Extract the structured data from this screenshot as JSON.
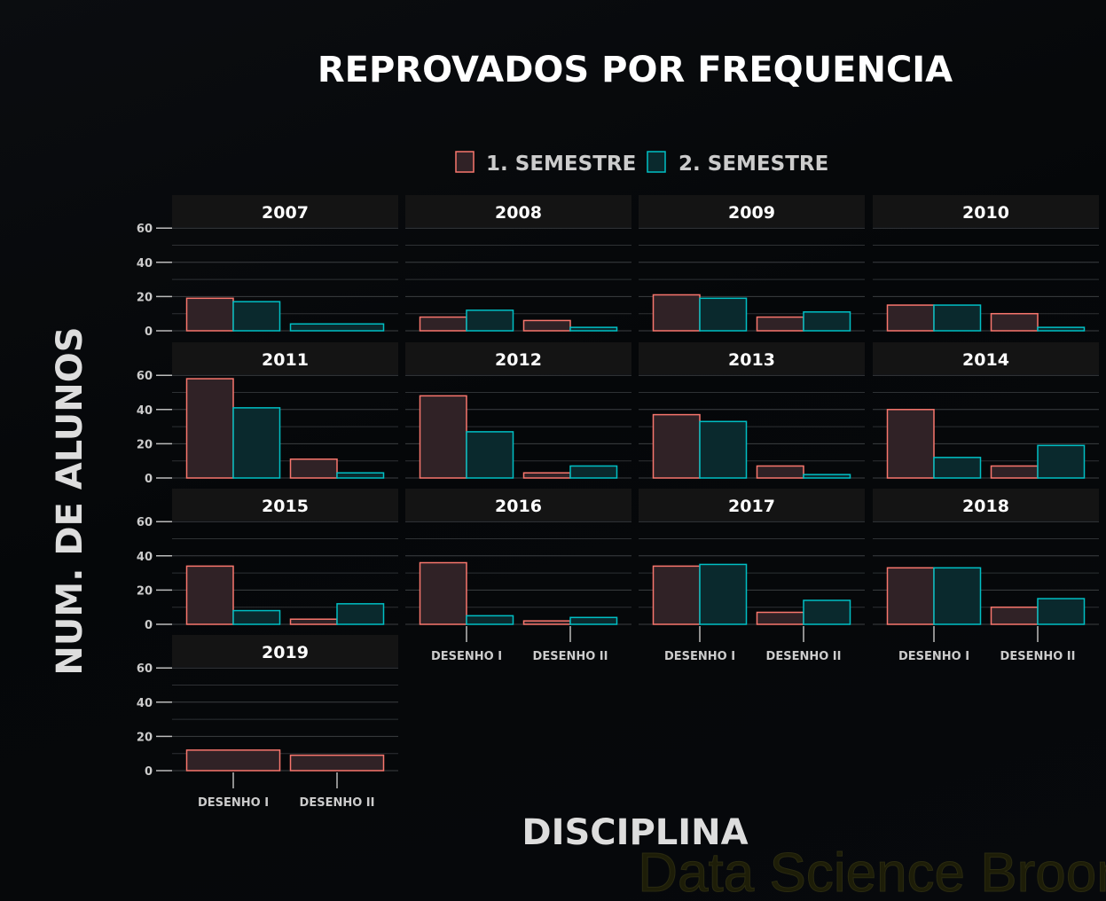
{
  "chart_data": {
    "type": "bar",
    "title": "REPROVADOS POR FREQUENCIA",
    "xlabel": "DISCIPLINA",
    "ylabel": "NUM. DE ALUNOS",
    "ylim": [
      0,
      70
    ],
    "yticks": [
      0,
      20,
      40,
      60
    ],
    "categories": [
      "DESENHO I",
      "DESENHO II"
    ],
    "legend": {
      "placement": "top",
      "entries": [
        "1. SEMESTRE",
        "2. SEMESTRE"
      ]
    },
    "colors": {
      "1. SEMESTRE": {
        "stroke": "#f8766d",
        "fill": "#302226"
      },
      "2. SEMESTRE": {
        "stroke": "#00bfc4",
        "fill": "#0a292d"
      }
    },
    "grid": true,
    "facets": [
      {
        "year": "2007",
        "data": {
          "DESENHO I": {
            "1. SEMESTRE": 19,
            "2. SEMESTRE": 17
          },
          "DESENHO II": {
            "2. SEMESTRE": 4
          }
        }
      },
      {
        "year": "2008",
        "data": {
          "DESENHO I": {
            "1. SEMESTRE": 8,
            "2. SEMESTRE": 12
          },
          "DESENHO II": {
            "1. SEMESTRE": 6,
            "2. SEMESTRE": 2
          }
        }
      },
      {
        "year": "2009",
        "data": {
          "DESENHO I": {
            "1. SEMESTRE": 21,
            "2. SEMESTRE": 19
          },
          "DESENHO II": {
            "1. SEMESTRE": 8,
            "2. SEMESTRE": 11
          }
        }
      },
      {
        "year": "2010",
        "data": {
          "DESENHO I": {
            "1. SEMESTRE": 15,
            "2. SEMESTRE": 15
          },
          "DESENHO II": {
            "1. SEMESTRE": 10,
            "2. SEMESTRE": 2
          }
        }
      },
      {
        "year": "2011",
        "data": {
          "DESENHO I": {
            "1. SEMESTRE": 58,
            "2. SEMESTRE": 41
          },
          "DESENHO II": {
            "1. SEMESTRE": 11,
            "2. SEMESTRE": 3
          }
        }
      },
      {
        "year": "2012",
        "data": {
          "DESENHO I": {
            "1. SEMESTRE": 48,
            "2. SEMESTRE": 27
          },
          "DESENHO II": {
            "1. SEMESTRE": 3,
            "2. SEMESTRE": 7
          }
        }
      },
      {
        "year": "2013",
        "data": {
          "DESENHO I": {
            "1. SEMESTRE": 37,
            "2. SEMESTRE": 33
          },
          "DESENHO II": {
            "1. SEMESTRE": 7,
            "2. SEMESTRE": 2
          }
        }
      },
      {
        "year": "2014",
        "data": {
          "DESENHO I": {
            "1. SEMESTRE": 40,
            "2. SEMESTRE": 12
          },
          "DESENHO II": {
            "1. SEMESTRE": 7,
            "2. SEMESTRE": 19
          }
        }
      },
      {
        "year": "2015",
        "data": {
          "DESENHO I": {
            "1. SEMESTRE": 34,
            "2. SEMESTRE": 8
          },
          "DESENHO II": {
            "1. SEMESTRE": 3,
            "2. SEMESTRE": 12
          }
        }
      },
      {
        "year": "2016",
        "data": {
          "DESENHO I": {
            "1. SEMESTRE": 36,
            "2. SEMESTRE": 5
          },
          "DESENHO II": {
            "1. SEMESTRE": 2,
            "2. SEMESTRE": 4
          }
        }
      },
      {
        "year": "2017",
        "data": {
          "DESENHO I": {
            "1. SEMESTRE": 34,
            "2. SEMESTRE": 35
          },
          "DESENHO II": {
            "1. SEMESTRE": 7,
            "2. SEMESTRE": 14
          }
        }
      },
      {
        "year": "2018",
        "data": {
          "DESENHO I": {
            "1. SEMESTRE": 33,
            "2. SEMESTRE": 33
          },
          "DESENHO II": {
            "1. SEMESTRE": 10,
            "2. SEMESTRE": 15
          }
        }
      },
      {
        "year": "2019",
        "data": {
          "DESENHO I": {
            "1. SEMESTRE": 12
          },
          "DESENHO II": {
            "1. SEMESTRE": 9
          }
        }
      }
    ],
    "watermark": "Data Science Broon"
  }
}
